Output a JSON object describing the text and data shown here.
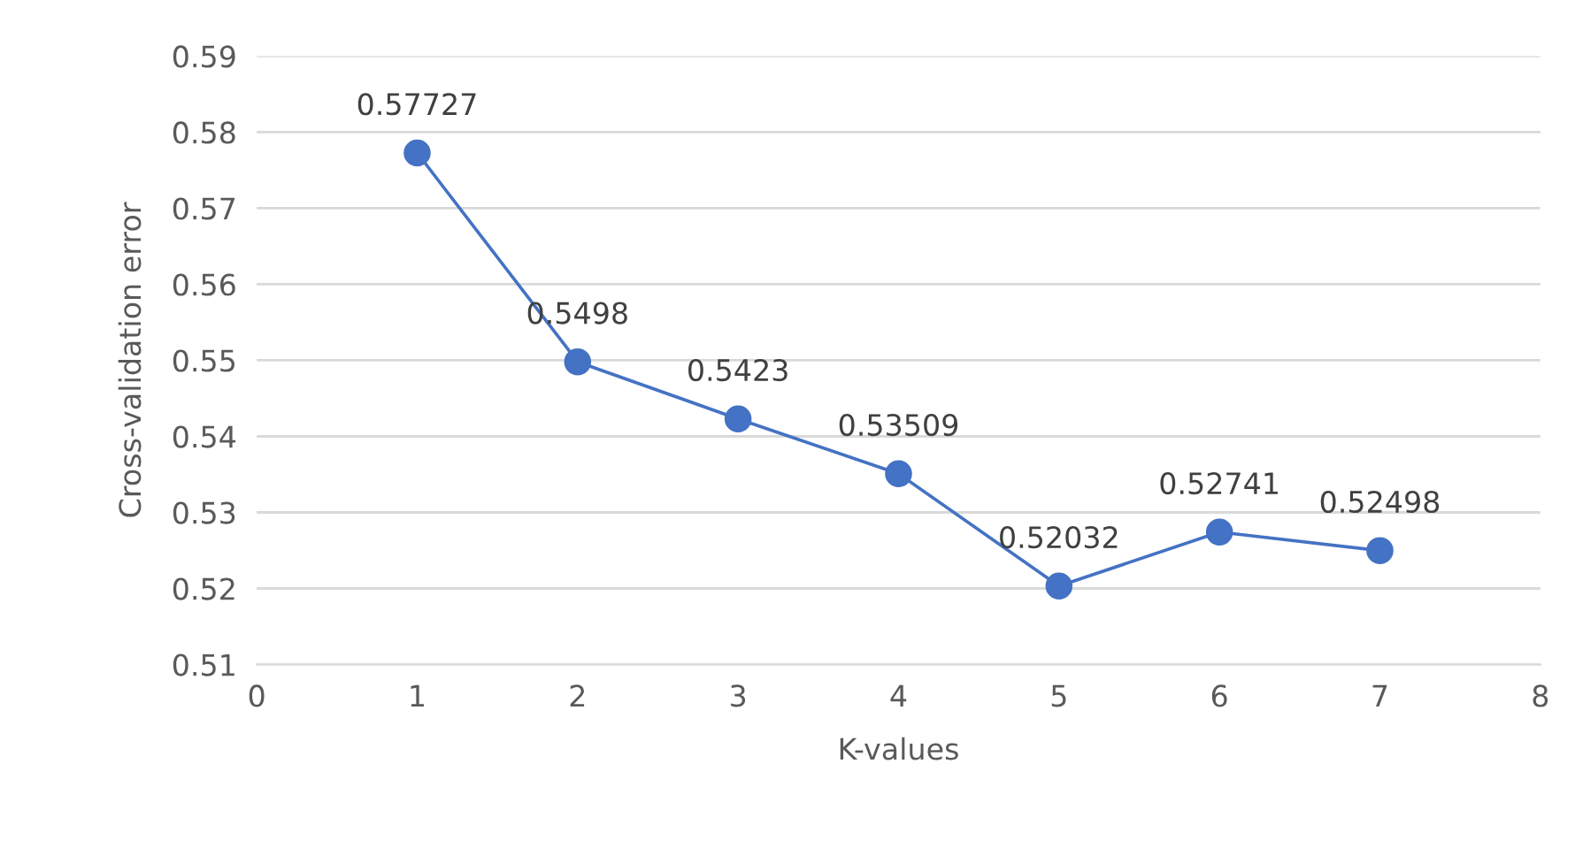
{
  "chart_data": {
    "type": "line",
    "xlabel": "K-values",
    "ylabel": "Cross-validation error",
    "x": [
      1,
      2,
      3,
      4,
      5,
      6,
      7
    ],
    "series": [
      {
        "color": "#4472c4",
        "values": [
          0.57727,
          0.5498,
          0.5423,
          0.53509,
          0.52032,
          0.52741,
          0.52498
        ]
      }
    ],
    "xlim": [
      0,
      8
    ],
    "xticks": [
      0,
      1,
      2,
      3,
      4,
      5,
      6,
      7,
      8
    ],
    "ylim": [
      0.51,
      0.59
    ],
    "yticks": [
      0.51,
      0.52,
      0.53,
      0.54,
      0.55,
      0.56,
      0.57,
      0.58,
      0.59
    ],
    "grid": "y",
    "marker": "circle",
    "line_style": "solid",
    "data_labels": true
  }
}
